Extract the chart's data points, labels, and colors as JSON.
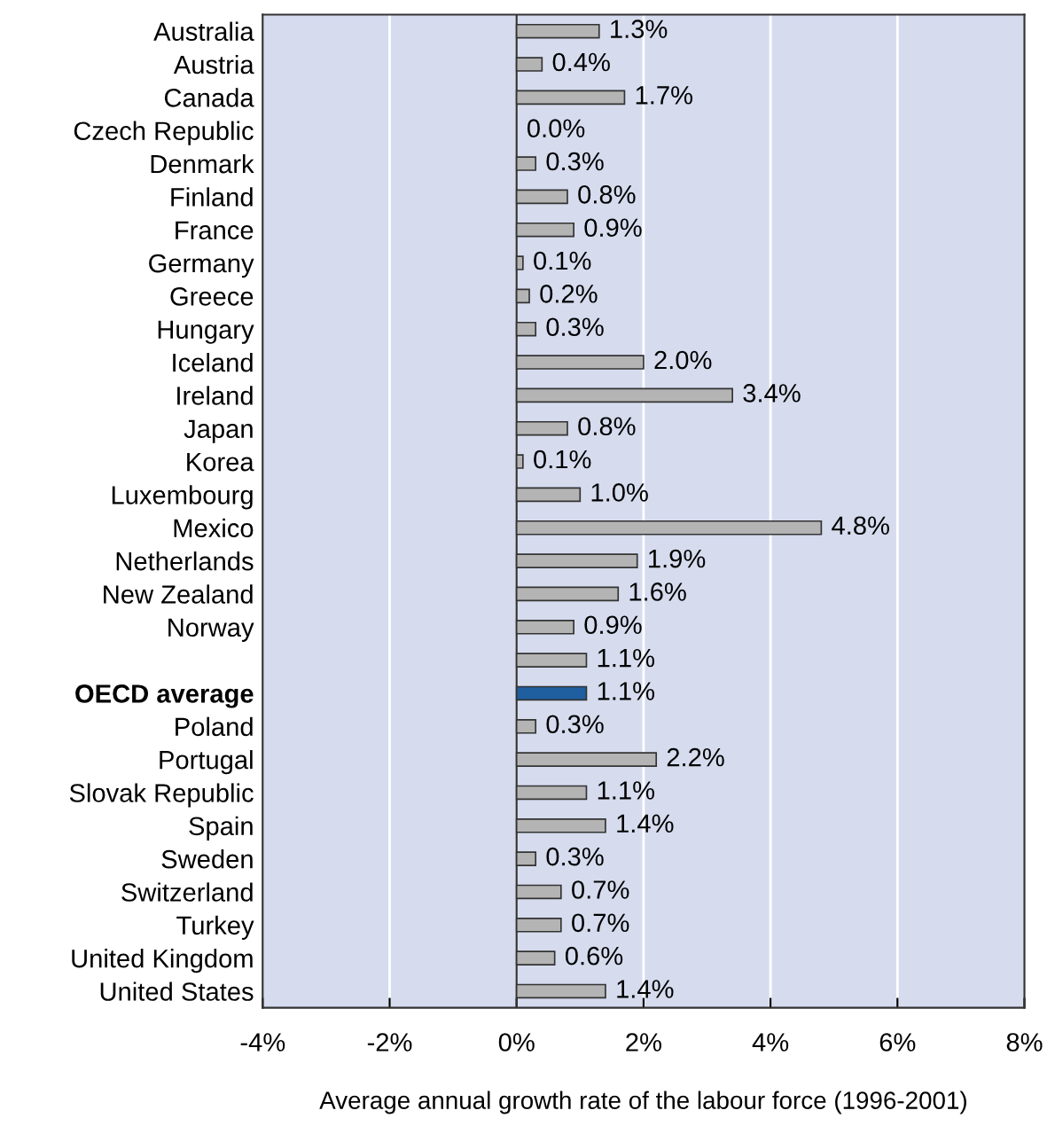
{
  "chart_data": {
    "type": "bar",
    "orientation": "horizontal",
    "xlabel": "Average annual growth rate of the labour force (1996-2001)",
    "categories": [
      "Australia",
      "Austria",
      "Canada",
      "Czech Republic",
      "Denmark",
      "Finland",
      "France",
      "Germany",
      "Greece",
      "Hungary",
      "Iceland",
      "Ireland",
      "Japan",
      "Korea",
      "Luxembourg",
      "Mexico",
      "Netherlands",
      "New Zealand",
      "Norway",
      null,
      "OECD average",
      "Poland",
      "Portugal",
      "Slovak Republic",
      "Spain",
      "Sweden",
      "Switzerland",
      "Turkey",
      "United Kingdom",
      "United States"
    ],
    "values": [
      1.3,
      0.4,
      1.7,
      0.0,
      0.3,
      0.8,
      0.9,
      0.1,
      0.2,
      0.3,
      2.0,
      3.4,
      0.8,
      0.1,
      1.0,
      4.8,
      1.9,
      1.6,
      0.9,
      1.1,
      1.1,
      0.3,
      2.2,
      1.1,
      1.4,
      0.3,
      0.7,
      0.7,
      0.6,
      1.4
    ],
    "value_labels": [
      "1.3%",
      "0.4%",
      "1.7%",
      "0.0%",
      "0.3%",
      "0.8%",
      "0.9%",
      "0.1%",
      "0.2%",
      "0.3%",
      "2.0%",
      "3.4%",
      "0.8%",
      "0.1%",
      "1.0%",
      "4.8%",
      "1.9%",
      "1.6%",
      "0.9%",
      "1.1%",
      "1.1%",
      "0.3%",
      "2.2%",
      "1.1%",
      "1.4%",
      "0.3%",
      "0.7%",
      "0.7%",
      "0.6%",
      "1.4%"
    ],
    "colors": [
      "#b4b4b4",
      "#b4b4b4",
      "#b4b4b4",
      "#b4b4b4",
      "#b4b4b4",
      "#b4b4b4",
      "#b4b4b4",
      "#b4b4b4",
      "#b4b4b4",
      "#b4b4b4",
      "#b4b4b4",
      "#b4b4b4",
      "#b4b4b4",
      "#b4b4b4",
      "#b4b4b4",
      "#b4b4b4",
      "#b4b4b4",
      "#b4b4b4",
      "#b4b4b4",
      "#b4b4b4",
      "#1f5fa0",
      "#b4b4b4",
      "#b4b4b4",
      "#b4b4b4",
      "#b4b4b4",
      "#b4b4b4",
      "#b4b4b4",
      "#b4b4b4",
      "#b4b4b4",
      "#b4b4b4"
    ],
    "xlim": [
      -4,
      8
    ],
    "xticks": [
      {
        "value": -4,
        "label": "-4%"
      },
      {
        "value": -2,
        "label": "-2%"
      },
      {
        "value": 0,
        "label": "0%"
      },
      {
        "value": 2,
        "label": "2%"
      },
      {
        "value": 4,
        "label": "4%"
      },
      {
        "value": 6,
        "label": "6%"
      },
      {
        "value": 8,
        "label": "8%"
      }
    ],
    "grid": "x",
    "legend": false
  }
}
